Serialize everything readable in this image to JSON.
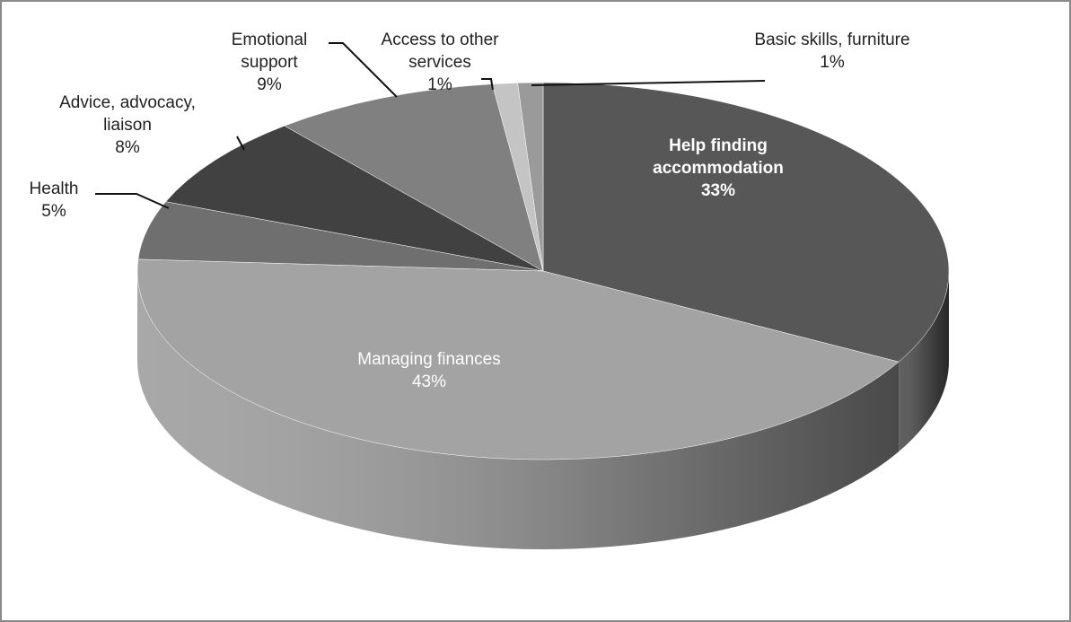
{
  "chart_data": {
    "type": "pie3d",
    "categories": [
      "Help finding accommodation",
      "Managing finances",
      "Health",
      "Advice, advocacy, liaison",
      "Emotional support",
      "Access to other services",
      "Basic skills, furniture"
    ],
    "values": [
      33,
      43,
      5,
      8,
      9,
      1,
      1
    ],
    "value_labels": [
      "33%",
      "43%",
      "5%",
      "8%",
      "9%",
      "1%",
      "1%"
    ],
    "colors": [
      "#575757",
      "#a3a3a3",
      "#6f6f6f",
      "#414141",
      "#808080",
      "#c4c4c4",
      "#9a9a9a"
    ]
  }
}
